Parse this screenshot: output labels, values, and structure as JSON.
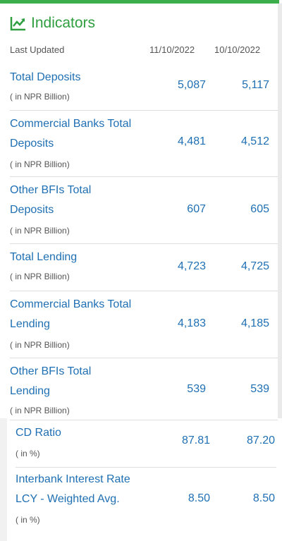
{
  "header": {
    "title": "Indicators",
    "last_updated_label": "Last Updated",
    "date1": "11/10/2022",
    "date2": "10/10/2022"
  },
  "rows": [
    {
      "label_lines": [
        "Total Deposits"
      ],
      "unit": "( in NPR Billion)",
      "v1": "5,087",
      "v2": "5,117"
    },
    {
      "label_lines": [
        "Commercial Banks Total",
        "Deposits"
      ],
      "unit": "( in NPR Billion)",
      "v1": "4,481",
      "v2": "4,512"
    },
    {
      "label_lines": [
        "Other BFIs Total",
        "Deposits"
      ],
      "unit": "( in NPR Billion)",
      "v1": "607",
      "v2": "605"
    },
    {
      "label_lines": [
        "Total Lending"
      ],
      "unit": "( in NPR Billion)",
      "v1": "4,723",
      "v2": "4,725"
    },
    {
      "label_lines": [
        "Commercial Banks Total",
        "Lending"
      ],
      "unit": "( in NPR Billion)",
      "v1": "4,183",
      "v2": "4,185"
    },
    {
      "label_lines": [
        "Other BFIs Total",
        "Lending"
      ],
      "unit": "( in NPR Billion)",
      "v1": "539",
      "v2": "539"
    },
    {
      "label_lines": [
        "CD Ratio"
      ],
      "unit": "( in %)",
      "v1": "87.81",
      "v2": "87.20"
    },
    {
      "label_lines": [
        "Interbank Interest Rate",
        "LCY - Weighted Avg."
      ],
      "unit": "( in %)",
      "v1": "8.50",
      "v2": "8.50"
    }
  ],
  "colors": {
    "accent": "#2e9e3f",
    "text_blue": "#1f6fb3"
  }
}
